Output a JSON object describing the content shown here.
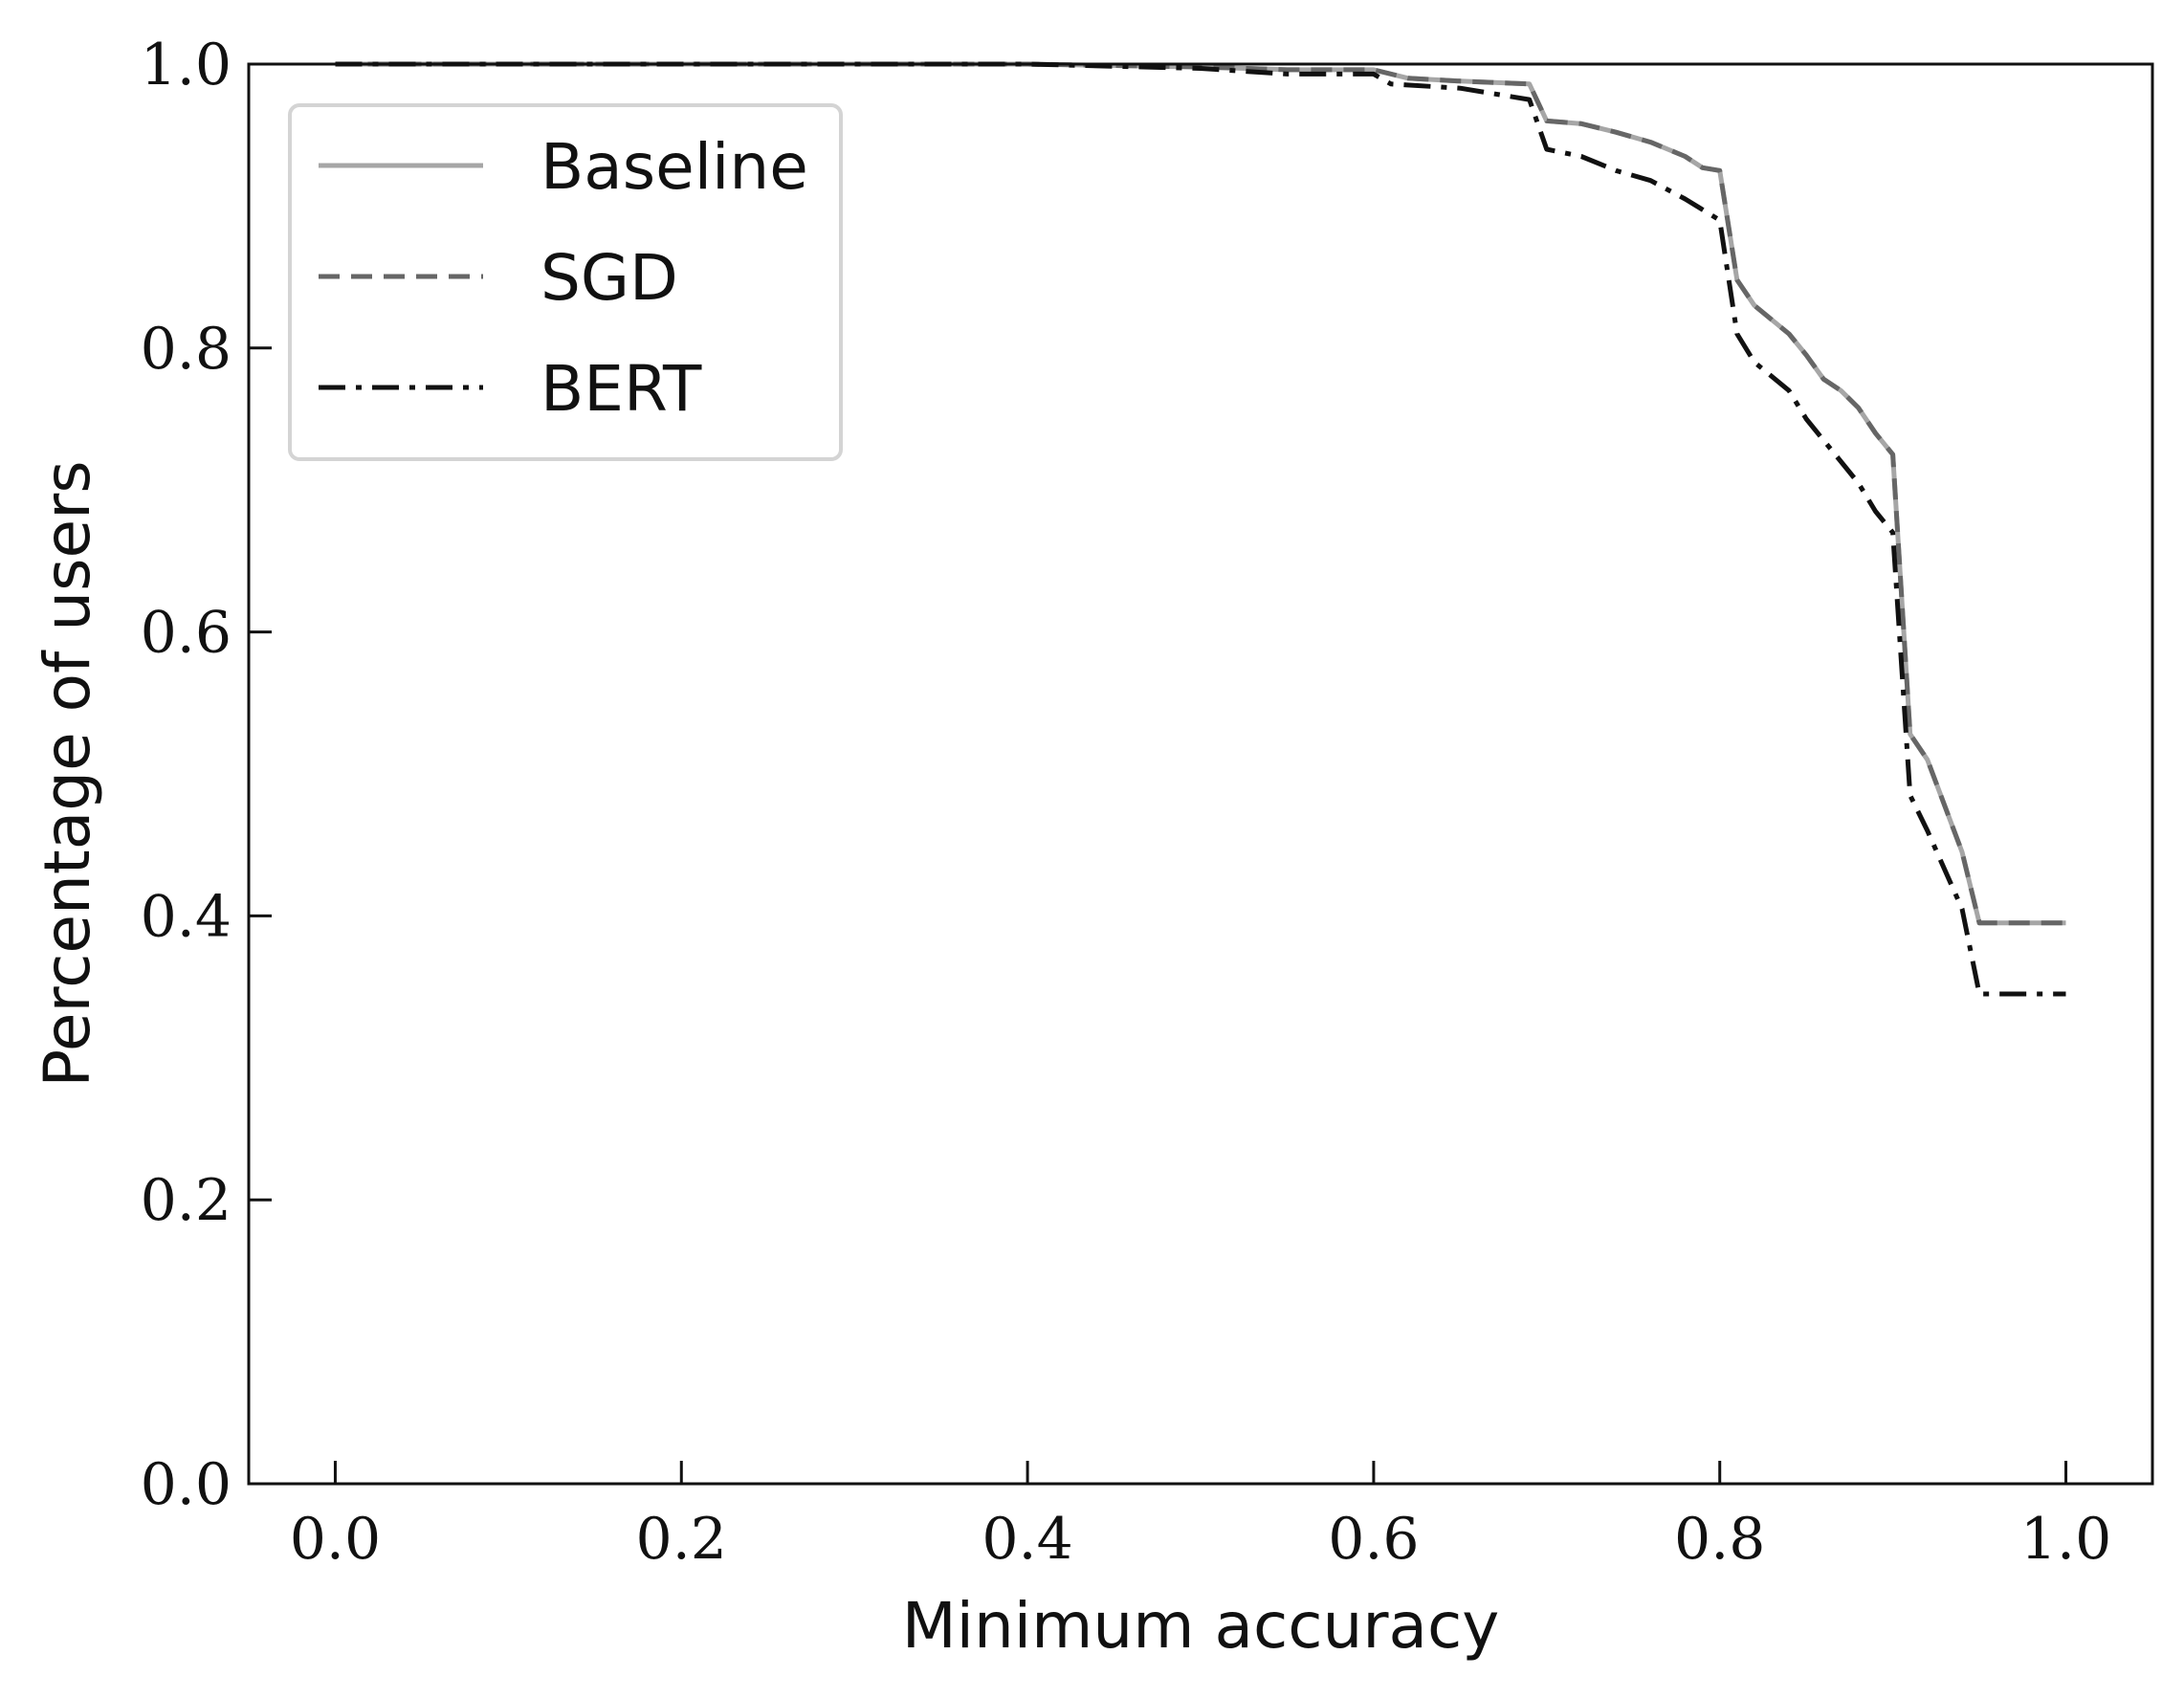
{
  "chart_data": {
    "type": "line",
    "title": "",
    "xlabel": "Minimum accuracy",
    "ylabel": "Percentage of users",
    "xlim": [
      -0.05,
      1.05
    ],
    "ylim": [
      0.0,
      1.0
    ],
    "xticks": [
      0.0,
      0.2,
      0.4,
      0.6,
      0.8,
      1.0
    ],
    "yticks": [
      0.0,
      0.2,
      0.4,
      0.6,
      0.8,
      1.0
    ],
    "xtick_labels": [
      "0.0",
      "0.2",
      "0.4",
      "0.6",
      "0.8",
      "1.0"
    ],
    "ytick_labels": [
      "0.0",
      "0.2",
      "0.4",
      "0.6",
      "0.8",
      "1.0"
    ],
    "grid": false,
    "legend_position": "top-left",
    "series": [
      {
        "name": "Baseline",
        "color": "#a6a6a6",
        "dash": "solid",
        "x": [
          0.0,
          0.1,
          0.2,
          0.3,
          0.4,
          0.5,
          0.55,
          0.6,
          0.62,
          0.65,
          0.69,
          0.7,
          0.72,
          0.74,
          0.76,
          0.78,
          0.79,
          0.8,
          0.81,
          0.82,
          0.84,
          0.85,
          0.86,
          0.87,
          0.88,
          0.89,
          0.9,
          0.91,
          0.92,
          0.94,
          0.95,
          0.96,
          0.98,
          1.0
        ],
        "y": [
          1.0,
          1.0,
          1.0,
          1.0,
          1.0,
          0.998,
          0.996,
          0.996,
          0.99,
          0.988,
          0.986,
          0.96,
          0.958,
          0.952,
          0.945,
          0.935,
          0.927,
          0.925,
          0.848,
          0.83,
          0.81,
          0.795,
          0.778,
          0.77,
          0.758,
          0.74,
          0.725,
          0.528,
          0.51,
          0.445,
          0.395,
          0.395,
          0.395,
          0.395
        ]
      },
      {
        "name": "SGD",
        "color": "#666666",
        "dash": "dashed",
        "x": [
          0.0,
          0.1,
          0.2,
          0.3,
          0.4,
          0.5,
          0.55,
          0.6,
          0.62,
          0.65,
          0.69,
          0.7,
          0.72,
          0.74,
          0.76,
          0.78,
          0.79,
          0.8,
          0.81,
          0.82,
          0.84,
          0.85,
          0.86,
          0.87,
          0.88,
          0.89,
          0.9,
          0.91,
          0.92,
          0.94,
          0.95,
          0.96,
          0.98,
          1.0
        ],
        "y": [
          1.0,
          1.0,
          1.0,
          1.0,
          1.0,
          0.998,
          0.996,
          0.996,
          0.99,
          0.988,
          0.986,
          0.96,
          0.958,
          0.952,
          0.945,
          0.935,
          0.927,
          0.925,
          0.848,
          0.83,
          0.81,
          0.795,
          0.778,
          0.77,
          0.758,
          0.74,
          0.725,
          0.528,
          0.51,
          0.445,
          0.395,
          0.395,
          0.395,
          0.395
        ]
      },
      {
        "name": "BERT",
        "color": "#111111",
        "dash": "dashdot",
        "x": [
          0.0,
          0.1,
          0.2,
          0.3,
          0.4,
          0.5,
          0.55,
          0.6,
          0.61,
          0.65,
          0.69,
          0.7,
          0.72,
          0.74,
          0.76,
          0.78,
          0.8,
          0.81,
          0.82,
          0.84,
          0.85,
          0.86,
          0.87,
          0.88,
          0.89,
          0.9,
          0.91,
          0.92,
          0.94,
          0.95,
          0.96,
          0.98,
          1.0
        ],
        "y": [
          1.0,
          1.0,
          1.0,
          1.0,
          1.0,
          0.997,
          0.993,
          0.993,
          0.986,
          0.983,
          0.975,
          0.94,
          0.935,
          0.925,
          0.918,
          0.905,
          0.89,
          0.81,
          0.79,
          0.77,
          0.75,
          0.735,
          0.72,
          0.705,
          0.685,
          0.67,
          0.485,
          0.46,
          0.405,
          0.345,
          0.345,
          0.345,
          0.345
        ]
      }
    ]
  }
}
